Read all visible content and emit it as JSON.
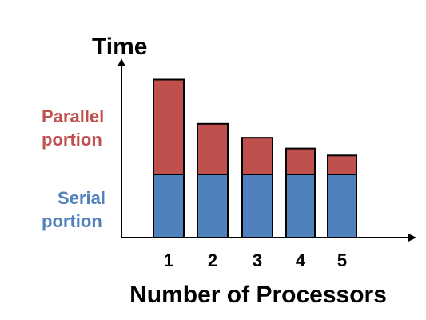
{
  "chart_data": {
    "type": "bar",
    "stacked": true,
    "ylabel": "Time",
    "xlabel": "Number of Processors",
    "categories": [
      "1",
      "2",
      "3",
      "4",
      "5"
    ],
    "series": [
      {
        "name": "Serial portion",
        "values": [
          1,
          1,
          1,
          1,
          1
        ],
        "color": "#4f81bd"
      },
      {
        "name": "Parallel portion",
        "values": [
          1.5,
          0.8,
          0.58,
          0.41,
          0.3
        ],
        "color": "#c0504d"
      }
    ],
    "ylim": [
      0,
      2.5
    ],
    "grid": false,
    "axis_ticks": false,
    "legend_placement": "left",
    "legend_labels": {
      "parallel": [
        "Parallel",
        "portion"
      ],
      "serial": [
        "Serial",
        "portion"
      ]
    }
  }
}
